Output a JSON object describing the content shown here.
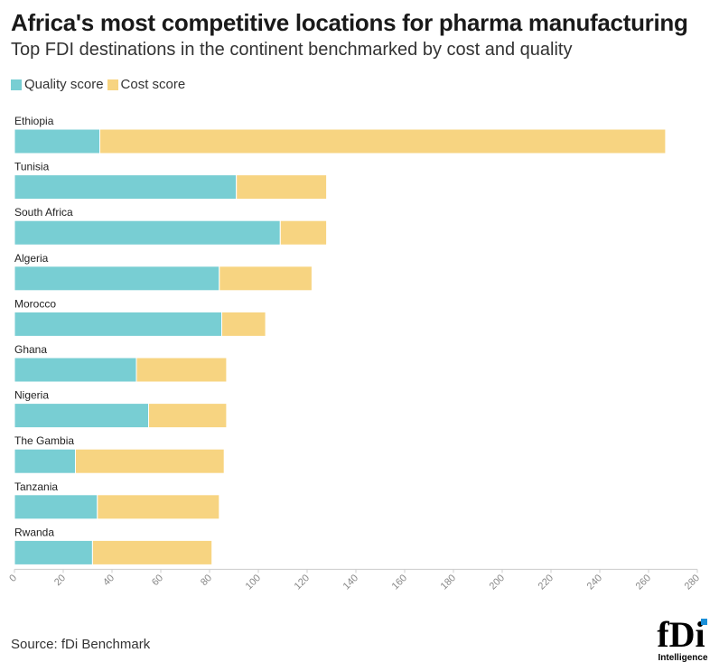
{
  "title": "Africa's most competitive locations for pharma manufacturing",
  "subtitle": "Top FDI destinations in the continent benchmarked by cost and quality",
  "source": "Source: fDi Benchmark",
  "logo": {
    "main": "fDi",
    "sub": "Intelligence"
  },
  "colors": {
    "quality": "#78ced3",
    "cost": "#f7d481",
    "axis": "#cccccc",
    "tick_text": "#888888"
  },
  "chart_data": {
    "type": "bar",
    "orientation": "horizontal",
    "stacked": true,
    "categories": [
      "Ethiopia",
      "Tunisia",
      "South Africa",
      "Algeria",
      "Morocco",
      "Ghana",
      "Nigeria",
      "The Gambia",
      "Tanzania",
      "Rwanda"
    ],
    "series": [
      {
        "name": "Quality score",
        "values": [
          35,
          91,
          109,
          84,
          85,
          50,
          55,
          25,
          34,
          32
        ]
      },
      {
        "name": "Cost score",
        "values": [
          232,
          37,
          19,
          38,
          18,
          37,
          32,
          61,
          50,
          49
        ]
      }
    ],
    "xlim": [
      0,
      280
    ],
    "xticks": [
      "0",
      "20",
      "40",
      "60",
      "80",
      "100",
      "120",
      "140",
      "160",
      "180",
      "200",
      "220",
      "240",
      "260",
      "280"
    ],
    "legend_position": "top-left",
    "grid": false
  }
}
